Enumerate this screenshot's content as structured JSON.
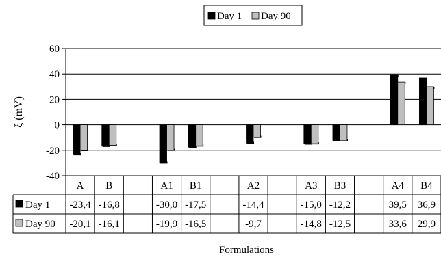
{
  "chart_data": {
    "type": "bar",
    "ylabel": "ξ (mV)",
    "xlabel": "Formulations",
    "ylim": [
      -40,
      60
    ],
    "yticks": [
      -40,
      -20,
      0,
      20,
      40,
      60
    ],
    "grid": true,
    "legend_position": "top",
    "categories": [
      "A",
      "B",
      "",
      "A1",
      "B1",
      "",
      "A2",
      "",
      "A3",
      "B3",
      "",
      "A4",
      "B4"
    ],
    "series": [
      {
        "name": "Day 1",
        "color": "#000000",
        "values": [
          -23.4,
          -16.8,
          null,
          -30.0,
          -17.5,
          null,
          -14.4,
          null,
          -15.0,
          -12.2,
          null,
          39.5,
          36.9
        ],
        "labels": [
          "-23,4",
          "-16,8",
          "",
          "-30,0",
          "-17,5",
          "",
          "-14,4",
          "",
          "-15,0",
          "-12,2",
          "",
          "39,5",
          "36,9"
        ]
      },
      {
        "name": "Day 90",
        "color": "#bfbfbf",
        "values": [
          -20.1,
          -16.1,
          null,
          -19.9,
          -16.5,
          null,
          -9.7,
          null,
          -14.8,
          -12.5,
          null,
          33.6,
          29.9
        ],
        "labels": [
          "-20,1",
          "-16,1",
          "",
          "-19,9",
          "-16,5",
          "",
          "-9,7",
          "",
          "-14,8",
          "-12,5",
          "",
          "33,6",
          "29,9"
        ]
      }
    ]
  }
}
